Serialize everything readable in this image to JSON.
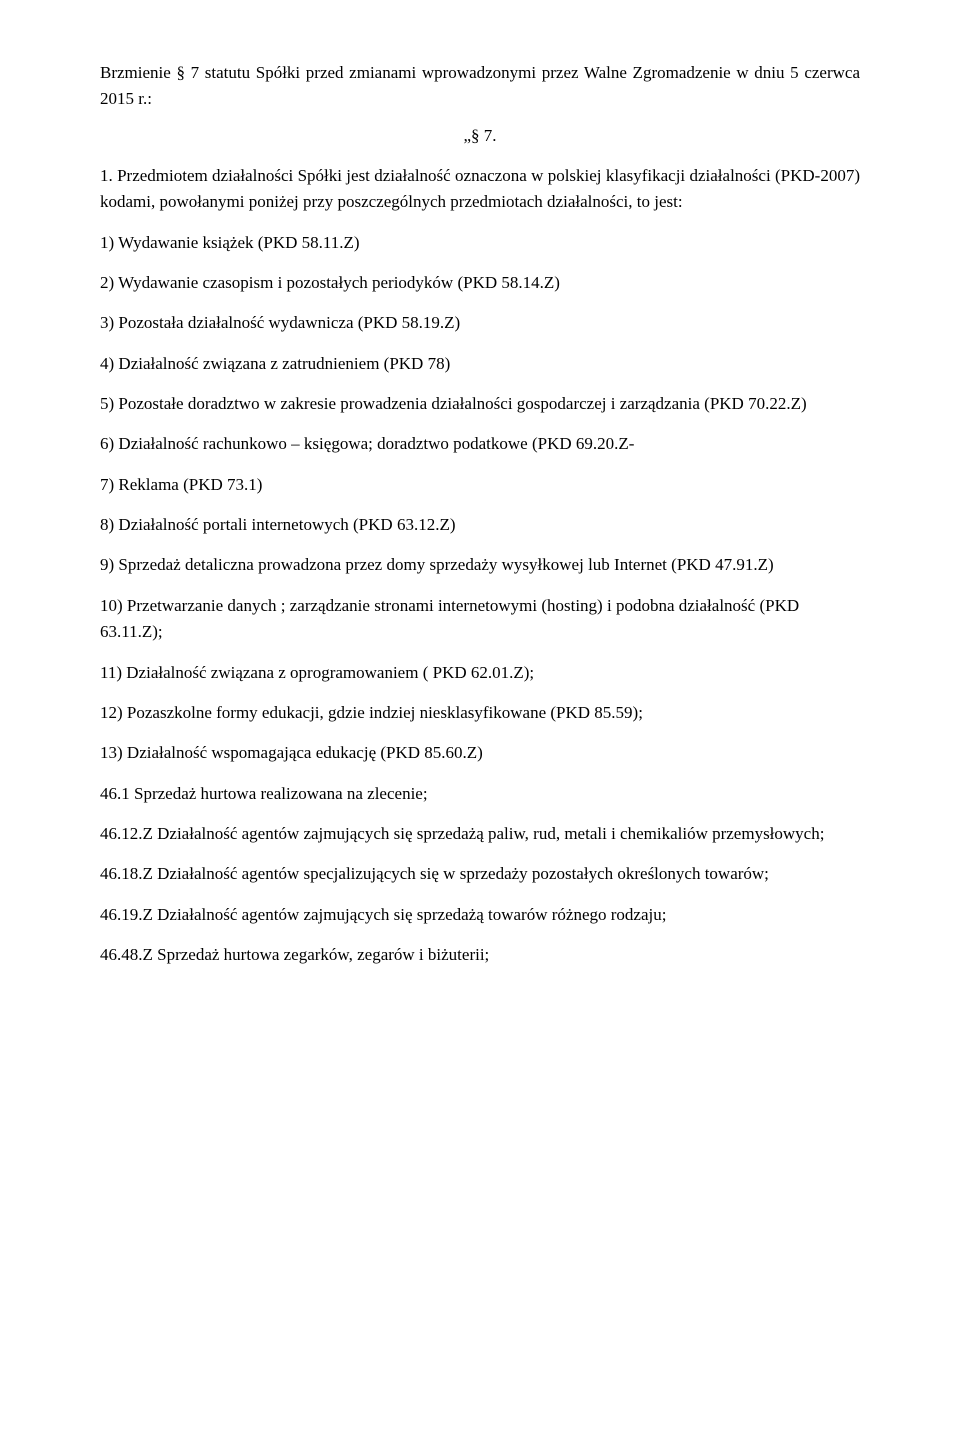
{
  "intro": "Brzmienie § 7 statutu Spółki przed zmianami wprowadzonymi przez Walne Zgromadzenie w dniu 5 czerwca 2015 r.:",
  "section_num": "„§ 7.",
  "para1": "1. Przedmiotem działalności Spółki jest działalność oznaczona w polskiej klasyfikacji działalności (PKD-2007) kodami, powołanymi poniżej przy poszczególnych przedmiotach działalności, to jest:",
  "items": [
    "1) Wydawanie książek (PKD 58.11.Z)",
    "2) Wydawanie czasopism i pozostałych periodyków (PKD 58.14.Z)",
    "3) Pozostała działalność wydawnicza (PKD 58.19.Z)",
    "4) Działalność związana z zatrudnieniem (PKD 78)",
    "5) Pozostałe doradztwo w zakresie prowadzenia działalności gospodarczej i zarządzania (PKD 70.22.Z)",
    "6) Działalność rachunkowo – księgowa; doradztwo podatkowe (PKD 69.20.Z-",
    "7) Reklama (PKD 73.1)",
    "8) Działalność portali internetowych (PKD 63.12.Z)",
    "9) Sprzedaż detaliczna prowadzona przez domy sprzedaży wysyłkowej lub Internet (PKD 47.91.Z)",
    "10) Przetwarzanie danych ; zarządzanie stronami internetowymi (hosting) i podobna działalność (PKD 63.11.Z);",
    "11) Działalność związana z oprogramowaniem ( PKD 62.01.Z);",
    "12) Pozaszkolne formy edukacji, gdzie indziej niesklasyfikowane (PKD 85.59);",
    "13) Działalność wspomagająca edukację (PKD 85.60.Z)",
    "46.1 Sprzedaż hurtowa realizowana na zlecenie;",
    "46.12.Z Działalność agentów zajmujących się sprzedażą paliw, rud, metali i chemikaliów przemysłowych;",
    "46.18.Z Działalność agentów specjalizujących się w sprzedaży pozostałych określonych towarów;",
    "46.19.Z Działalność agentów zajmujących się sprzedażą towarów różnego rodzaju;",
    "46.48.Z Sprzedaż hurtowa zegarków, zegarów i biżuterii;"
  ]
}
